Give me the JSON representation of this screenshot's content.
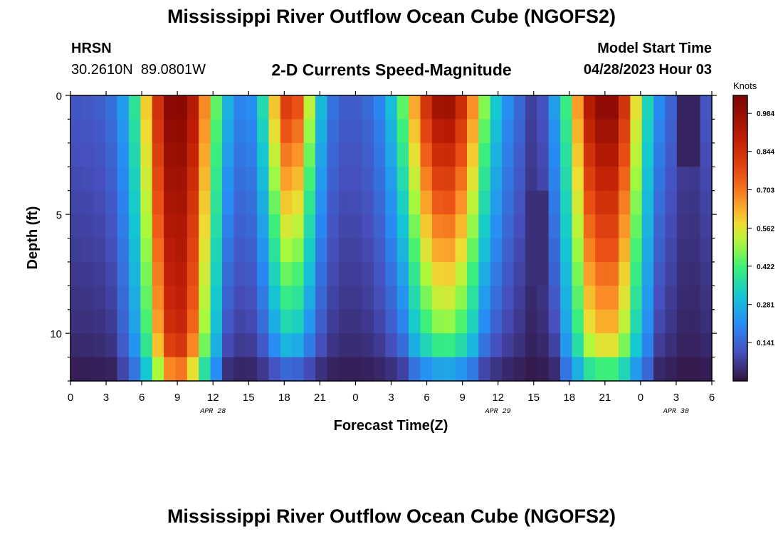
{
  "title": "Mississippi River Outflow Ocean Cube (NGOFS2)",
  "footer_title": "Mississippi River Outflow Ocean Cube (NGOFS2)",
  "station": {
    "code": "HRSN",
    "coords": "30.2610N  89.0801W"
  },
  "plot_title": "2-D Currents Speed-Magnitude",
  "model": {
    "label": "Model Start Time",
    "value": "04/28/2023 Hour 03"
  },
  "chart_data": {
    "type": "heatmap",
    "xlabel": "Forecast Time(Z)",
    "ylabel": "Depth (ft)",
    "colorbar_unit": "Knots",
    "colorbar_ticks": [
      "0.141",
      "0.281",
      "0.422",
      "0.562",
      "0.703",
      "0.844",
      "0.984"
    ],
    "colorbar_range": [
      0,
      1.05
    ],
    "x_hours": [
      0,
      54
    ],
    "y_depth_ft": [
      0,
      12
    ],
    "x_tick_labels": [
      "0",
      "3",
      "6",
      "9",
      "12",
      "15",
      "18",
      "21",
      "0",
      "3",
      "6",
      "9",
      "12",
      "15",
      "18",
      "21",
      "0",
      "3",
      "6"
    ],
    "y_tick_labels": [
      "0",
      "5",
      "10"
    ],
    "date_labels": [
      {
        "text": "APR 28",
        "hour": 12
      },
      {
        "text": "APR 29",
        "hour": 36
      },
      {
        "text": "APR 30",
        "hour": 51
      }
    ],
    "depth_levels": 12,
    "time_steps": 55,
    "grid": false
  }
}
